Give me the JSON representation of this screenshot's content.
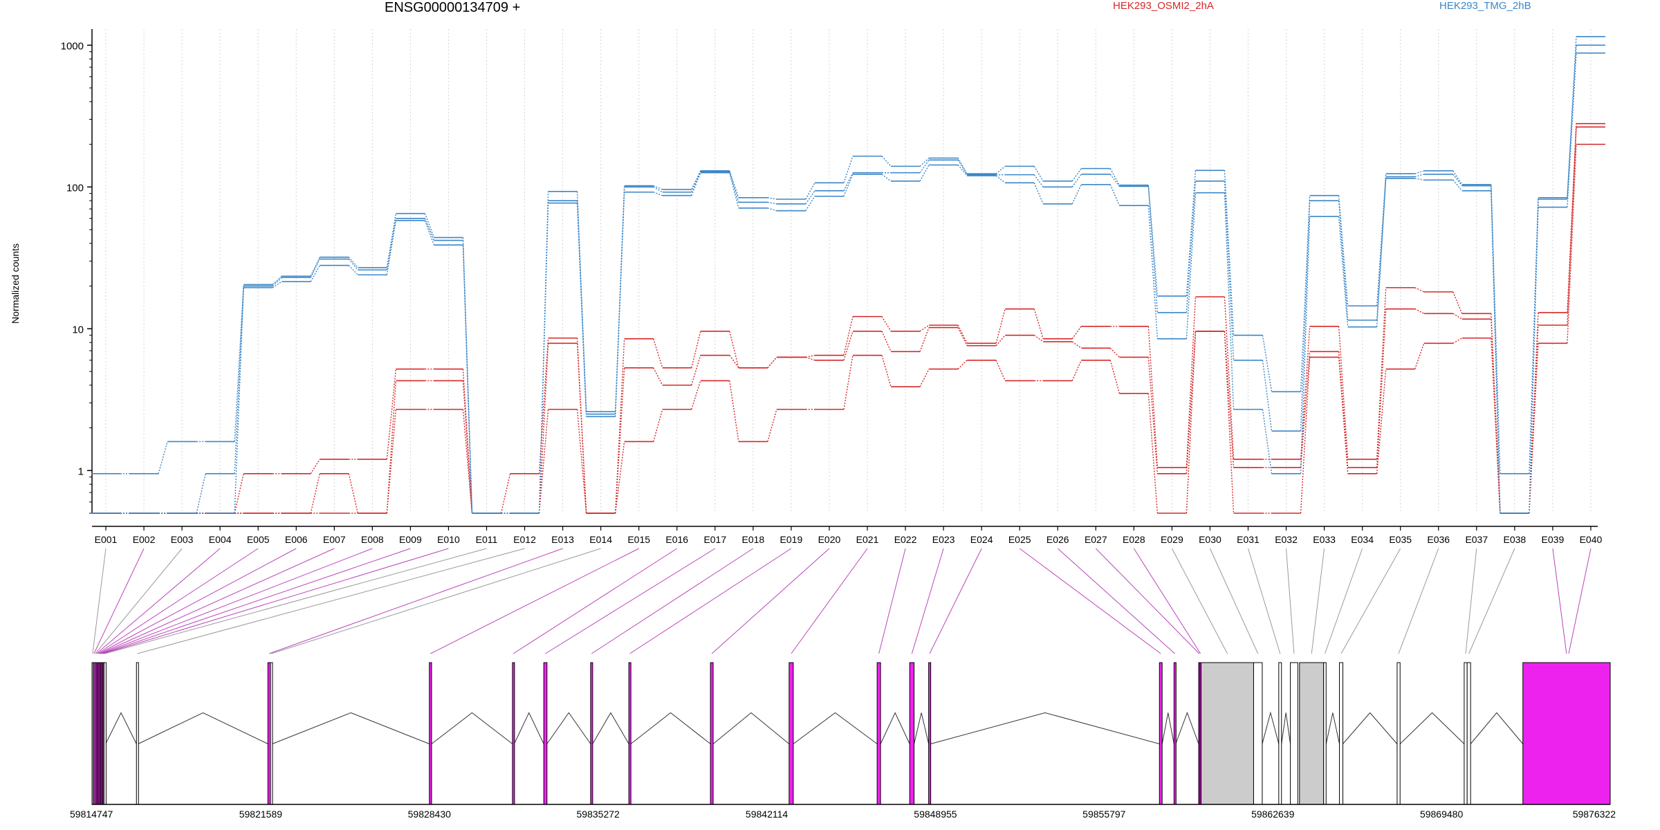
{
  "chart_data": {
    "type": "line",
    "title": "ENSG00000134709 +",
    "ylabel": "Normalized counts",
    "yscale": "log",
    "ylim": [
      0.5,
      1300
    ],
    "yticks": [
      1,
      10,
      100,
      1000
    ],
    "ytick_labels": [
      "1",
      "10",
      "100",
      "1000"
    ],
    "grid": "vertical dotted at exon centers",
    "legend_placement": "top",
    "categories": [
      "E001",
      "E002",
      "E003",
      "E004",
      "E005",
      "E006",
      "E007",
      "E008",
      "E009",
      "E010",
      "E011",
      "E012",
      "E013",
      "E014",
      "E015",
      "E016",
      "E017",
      "E018",
      "E019",
      "E020",
      "E021",
      "E022",
      "E023",
      "E024",
      "E025",
      "E026",
      "E027",
      "E028",
      "E029",
      "E030",
      "E031",
      "E032",
      "E033",
      "E034",
      "E035",
      "E036",
      "E037",
      "E038",
      "E039",
      "E040"
    ],
    "series": [
      {
        "name": "",
        "group": "HEK293_OSMI2_2hA",
        "color": "#d62728",
        "values": [
          0.5,
          0.5,
          0.5,
          0.5,
          0.95,
          0.95,
          1.2,
          1.2,
          5.2,
          5.2,
          0.5,
          0.95,
          8.6,
          0.5,
          8.5,
          5.3,
          9.6,
          5.3,
          6.3,
          6.5,
          12.2,
          9.6,
          10.6,
          7.9,
          13.8,
          8.5,
          10.4,
          10.4,
          1.05,
          16.8,
          1.2,
          1.2,
          10.4,
          1.2,
          19.5,
          18.2,
          12.8,
          0.5,
          13.0,
          280
        ]
      },
      {
        "name": "",
        "group": "HEK293_OSMI2_2hA",
        "color": "#d62728",
        "values": [
          0.5,
          0.5,
          0.5,
          0.5,
          0.5,
          0.5,
          0.95,
          0.5,
          4.3,
          4.3,
          0.5,
          0.5,
          7.9,
          0.5,
          5.3,
          4.0,
          6.5,
          5.3,
          6.3,
          6.0,
          9.6,
          6.9,
          10.2,
          7.6,
          9.0,
          8.1,
          7.3,
          6.3,
          0.95,
          9.6,
          1.05,
          1.05,
          6.9,
          1.05,
          13.8,
          12.8,
          11.7,
          0.5,
          10.6,
          265
        ]
      },
      {
        "name": "",
        "group": "HEK293_OSMI2_2hA",
        "color": "#d62728",
        "values": [
          0.5,
          0.5,
          0.5,
          0.5,
          0.5,
          0.5,
          0.5,
          0.5,
          2.7,
          2.7,
          0.5,
          0.5,
          2.7,
          0.5,
          1.6,
          2.7,
          4.3,
          1.6,
          2.7,
          2.7,
          6.5,
          3.9,
          5.2,
          6.0,
          4.3,
          4.3,
          6.0,
          3.5,
          0.5,
          9.6,
          0.5,
          0.5,
          6.3,
          0.95,
          5.2,
          7.9,
          8.6,
          0.5,
          7.9,
          200
        ]
      },
      {
        "name": "",
        "group": "HEK293_TMG_2hB",
        "color": "#3a86c8",
        "values": [
          0.95,
          0.95,
          1.6,
          1.6,
          20.5,
          23.5,
          32,
          27,
          65,
          44,
          0.5,
          0.5,
          93,
          2.6,
          102,
          96,
          130,
          84,
          82,
          107,
          165,
          140,
          160,
          124,
          140,
          110,
          135,
          103,
          17,
          131,
          9,
          3.6,
          87,
          14.5,
          124,
          130,
          104,
          0.95,
          84,
          1150
        ]
      },
      {
        "name": "",
        "group": "HEK293_TMG_2hB",
        "color": "#3a86c8",
        "values": [
          0.5,
          0.5,
          0.5,
          0.95,
          20,
          23,
          31,
          26,
          60,
          42,
          0.5,
          0.5,
          80,
          2.5,
          100,
          92,
          128,
          78,
          76,
          94,
          126,
          126,
          155,
          122,
          122,
          100,
          123,
          101,
          13,
          110,
          6,
          1.9,
          80,
          11.5,
          118,
          123,
          102,
          0.5,
          82,
          1000
        ]
      },
      {
        "name": "",
        "group": "HEK293_TMG_2hB",
        "color": "#3a86c8",
        "values": [
          0.5,
          0.5,
          0.5,
          0.5,
          19.5,
          21.5,
          28,
          24,
          58,
          39,
          0.5,
          0.5,
          77,
          2.4,
          92,
          87,
          126,
          71,
          68,
          86,
          123,
          110,
          143,
          120,
          107,
          76,
          104,
          74,
          8.5,
          91,
          2.7,
          0.95,
          62,
          10.3,
          115,
          112,
          94,
          0.5,
          72,
          880
        ]
      }
    ],
    "legend": {
      "groups": [
        {
          "name": "HEK293_OSMI2_2hA",
          "color": "#d62728"
        },
        {
          "name": "HEK293_TMG_2hB",
          "color": "#3a86c8"
        }
      ]
    },
    "gene_model": {
      "genomic_start": 59814747,
      "genomic_end": 59876322,
      "coordinate_labels": [
        "59814747",
        "59821589",
        "59828430",
        "59835272",
        "59842114",
        "59848955",
        "59855797",
        "59862639",
        "59869480",
        "59876322"
      ],
      "colors": {
        "tested_exon": "#ee22ee",
        "untested_exon": "#ffffff",
        "wide_untested_exon": "#cccccc",
        "link_tested": "#bb44bb",
        "link_untested": "#999999"
      },
      "exons": [
        {
          "id": "E001",
          "start": 59814747,
          "end": 59814795,
          "tested": false
        },
        {
          "id": "E002",
          "start": 59814795,
          "end": 59814860,
          "tested": true
        },
        {
          "id": "E003",
          "start": 59814860,
          "end": 59814905,
          "tested": false
        },
        {
          "id": "E004",
          "start": 59814905,
          "end": 59814950,
          "tested": true
        },
        {
          "id": "E005",
          "start": 59814950,
          "end": 59815000,
          "tested": true
        },
        {
          "id": "E006",
          "start": 59815000,
          "end": 59815050,
          "tested": true
        },
        {
          "id": "E007",
          "start": 59815050,
          "end": 59815100,
          "tested": true
        },
        {
          "id": "E008",
          "start": 59815100,
          "end": 59815145,
          "tested": true
        },
        {
          "id": "E009",
          "start": 59815145,
          "end": 59815190,
          "tested": true
        },
        {
          "id": "E010",
          "start": 59815190,
          "end": 59815235,
          "tested": true
        },
        {
          "id": "E011",
          "start": 59815235,
          "end": 59815300,
          "tested": false
        },
        {
          "id": "E012",
          "start": 59816550,
          "end": 59816620,
          "tested": false
        },
        {
          "id": "E013",
          "start": 59821880,
          "end": 59821985,
          "tested": true
        },
        {
          "id": "E014",
          "start": 59821985,
          "end": 59822060,
          "tested": false
        },
        {
          "id": "E015",
          "start": 59828430,
          "end": 59828520,
          "tested": true
        },
        {
          "id": "E016",
          "start": 59831800,
          "end": 59831870,
          "tested": true
        },
        {
          "id": "E017",
          "start": 59833070,
          "end": 59833200,
          "tested": true
        },
        {
          "id": "E018",
          "start": 59834970,
          "end": 59835050,
          "tested": true
        },
        {
          "id": "E019",
          "start": 59836520,
          "end": 59836600,
          "tested": true
        },
        {
          "id": "E020",
          "start": 59839830,
          "end": 59839940,
          "tested": true
        },
        {
          "id": "E021",
          "start": 59843020,
          "end": 59843190,
          "tested": true
        },
        {
          "id": "E022",
          "start": 59846590,
          "end": 59846730,
          "tested": true
        },
        {
          "id": "E023",
          "start": 59847910,
          "end": 59848090,
          "tested": true
        },
        {
          "id": "E024",
          "start": 59848680,
          "end": 59848760,
          "tested": true
        },
        {
          "id": "E025",
          "start": 59858040,
          "end": 59858150,
          "tested": true
        },
        {
          "id": "E026",
          "start": 59858630,
          "end": 59858700,
          "tested": true
        },
        {
          "id": "E027",
          "start": 59859630,
          "end": 59859680,
          "tested": true
        },
        {
          "id": "E028",
          "start": 59859680,
          "end": 59859730,
          "tested": true
        },
        {
          "id": "E029",
          "start": 59859730,
          "end": 59861860,
          "tested": false,
          "wide": true
        },
        {
          "id": "E030",
          "start": 59861860,
          "end": 59862210,
          "tested": false
        },
        {
          "id": "E031",
          "start": 59862880,
          "end": 59862990,
          "tested": false
        },
        {
          "id": "E032",
          "start": 59863350,
          "end": 59863650,
          "tested": false
        },
        {
          "id": "E033",
          "start": 59863720,
          "end": 59864700,
          "tested": false,
          "wide": true
        },
        {
          "id": "E034",
          "start": 59864700,
          "end": 59864800,
          "tested": false
        },
        {
          "id": "E035",
          "start": 59865340,
          "end": 59865480,
          "tested": false
        },
        {
          "id": "E036",
          "start": 59867680,
          "end": 59867800,
          "tested": false
        },
        {
          "id": "E037",
          "start": 59870400,
          "end": 59870520,
          "tested": false
        },
        {
          "id": "E038",
          "start": 59870520,
          "end": 59870660,
          "tested": false
        },
        {
          "id": "E039",
          "start": 59872780,
          "end": 59876322,
          "tested": true
        },
        {
          "id": "E040",
          "start": 59876322,
          "end": 59876322,
          "tested": true,
          "hidden": true
        }
      ]
    }
  }
}
